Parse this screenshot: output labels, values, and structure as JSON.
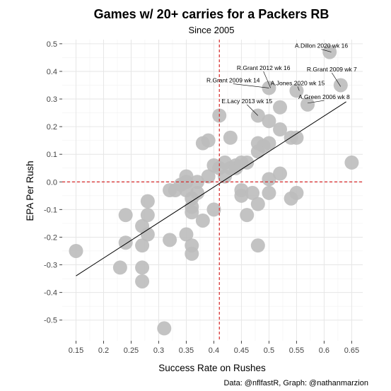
{
  "chart_data": {
    "type": "scatter",
    "title": "Games w/ 20+ carries for a Packers RB",
    "subtitle": "Since 2005",
    "xlabel": "Success Rate on Rushes",
    "ylabel": "EPA Per Rush",
    "caption": "Data: @nflfastR, Graph: @nathanmarzion",
    "xlim": [
      0.125,
      0.67
    ],
    "ylim": [
      -0.575,
      0.515
    ],
    "xticks": [
      "0.15",
      "0.2",
      "0.25",
      "0.3",
      "0.35",
      "0.4",
      "0.45",
      "0.5",
      "0.55",
      "0.6",
      "0.65"
    ],
    "yticks": [
      "-0.5",
      "-0.4",
      "-0.3",
      "-0.2",
      "-0.1",
      "0.0",
      "0.1",
      "0.2",
      "0.3",
      "0.4",
      "0.5"
    ],
    "grid": true,
    "point_color": "#bdbdbd",
    "ref_line_color": "#d62728",
    "ref_lines": {
      "x": 0.41,
      "y": 0.0
    },
    "trend_line": {
      "x": [
        0.15,
        0.64
      ],
      "y": [
        -0.34,
        0.29
      ]
    },
    "points": [
      {
        "x": 0.15,
        "y": -0.25
      },
      {
        "x": 0.23,
        "y": -0.31
      },
      {
        "x": 0.24,
        "y": -0.22
      },
      {
        "x": 0.24,
        "y": -0.12
      },
      {
        "x": 0.27,
        "y": -0.31
      },
      {
        "x": 0.27,
        "y": -0.36
      },
      {
        "x": 0.27,
        "y": -0.23
      },
      {
        "x": 0.27,
        "y": -0.16
      },
      {
        "x": 0.28,
        "y": -0.19
      },
      {
        "x": 0.28,
        "y": -0.12
      },
      {
        "x": 0.28,
        "y": -0.07
      },
      {
        "x": 0.31,
        "y": -0.53
      },
      {
        "x": 0.32,
        "y": -0.21
      },
      {
        "x": 0.32,
        "y": -0.03
      },
      {
        "x": 0.33,
        "y": -0.03
      },
      {
        "x": 0.34,
        "y": -0.01
      },
      {
        "x": 0.35,
        "y": -0.19
      },
      {
        "x": 0.35,
        "y": 0.02
      },
      {
        "x": 0.35,
        "y": 0.0
      },
      {
        "x": 0.35,
        "y": -0.03
      },
      {
        "x": 0.36,
        "y": -0.06
      },
      {
        "x": 0.36,
        "y": -0.11
      },
      {
        "x": 0.36,
        "y": -0.23
      },
      {
        "x": 0.36,
        "y": -0.26
      },
      {
        "x": 0.36,
        "y": -0.09
      },
      {
        "x": 0.37,
        "y": -0.04
      },
      {
        "x": 0.37,
        "y": 0.0
      },
      {
        "x": 0.38,
        "y": 0.14
      },
      {
        "x": 0.38,
        "y": -0.14
      },
      {
        "x": 0.39,
        "y": 0.15
      },
      {
        "x": 0.39,
        "y": 0.02
      },
      {
        "x": 0.4,
        "y": 0.06
      },
      {
        "x": 0.4,
        "y": -0.1
      },
      {
        "x": 0.41,
        "y": 0.24
      },
      {
        "x": 0.41,
        "y": 0.05
      },
      {
        "x": 0.42,
        "y": 0.02
      },
      {
        "x": 0.42,
        "y": 0.07
      },
      {
        "x": 0.43,
        "y": 0.16
      },
      {
        "x": 0.43,
        "y": 0.05
      },
      {
        "x": 0.44,
        "y": 0.06
      },
      {
        "x": 0.44,
        "y": 0.05
      },
      {
        "x": 0.45,
        "y": 0.07
      },
      {
        "x": 0.45,
        "y": -0.03
      },
      {
        "x": 0.45,
        "y": -0.05
      },
      {
        "x": 0.46,
        "y": 0.07
      },
      {
        "x": 0.46,
        "y": -0.12
      },
      {
        "x": 0.47,
        "y": -0.04
      },
      {
        "x": 0.48,
        "y": 0.11
      },
      {
        "x": 0.48,
        "y": 0.14
      },
      {
        "x": 0.48,
        "y": 0.24
      },
      {
        "x": 0.48,
        "y": -0.08
      },
      {
        "x": 0.48,
        "y": -0.23
      },
      {
        "x": 0.49,
        "y": 0.13
      },
      {
        "x": 0.5,
        "y": 0.34
      },
      {
        "x": 0.5,
        "y": 0.22
      },
      {
        "x": 0.5,
        "y": 0.14
      },
      {
        "x": 0.5,
        "y": -0.04
      },
      {
        "x": 0.5,
        "y": 0.01
      },
      {
        "x": 0.52,
        "y": 0.27
      },
      {
        "x": 0.52,
        "y": 0.19
      },
      {
        "x": 0.52,
        "y": 0.03
      },
      {
        "x": 0.54,
        "y": 0.16
      },
      {
        "x": 0.54,
        "y": -0.06
      },
      {
        "x": 0.55,
        "y": 0.33
      },
      {
        "x": 0.55,
        "y": 0.16
      },
      {
        "x": 0.55,
        "y": -0.04
      },
      {
        "x": 0.57,
        "y": 0.28
      },
      {
        "x": 0.61,
        "y": 0.47
      },
      {
        "x": 0.63,
        "y": 0.35
      },
      {
        "x": 0.65,
        "y": 0.07
      }
    ],
    "annotations": [
      {
        "text": "A.Dillon 2020 wk 16",
        "x": 0.613,
        "y": 0.47,
        "label_x": 0.595,
        "label_y": 0.485,
        "anchor": "middle"
      },
      {
        "text": "R.Grant 2012 wk 16",
        "x": 0.503,
        "y": 0.34,
        "label_x": 0.49,
        "label_y": 0.405,
        "anchor": "middle"
      },
      {
        "text": "R.Grant 2009 wk 7",
        "x": 0.63,
        "y": 0.345,
        "label_x": 0.614,
        "label_y": 0.4,
        "anchor": "middle"
      },
      {
        "text": "R.Grant 2009 wk 14",
        "x": 0.5,
        "y": 0.34,
        "label_x": 0.435,
        "label_y": 0.36,
        "anchor": "middle"
      },
      {
        "text": "A.Jones 2020 wk 15",
        "x": 0.555,
        "y": 0.33,
        "label_x": 0.552,
        "label_y": 0.35,
        "anchor": "middle"
      },
      {
        "text": "A.Green 2006 wk 8",
        "x": 0.57,
        "y": 0.285,
        "label_x": 0.6,
        "label_y": 0.3,
        "anchor": "middle"
      },
      {
        "text": "E.Lacy 2013 wk 15",
        "x": 0.48,
        "y": 0.24,
        "label_x": 0.46,
        "label_y": 0.285,
        "anchor": "middle"
      }
    ]
  }
}
